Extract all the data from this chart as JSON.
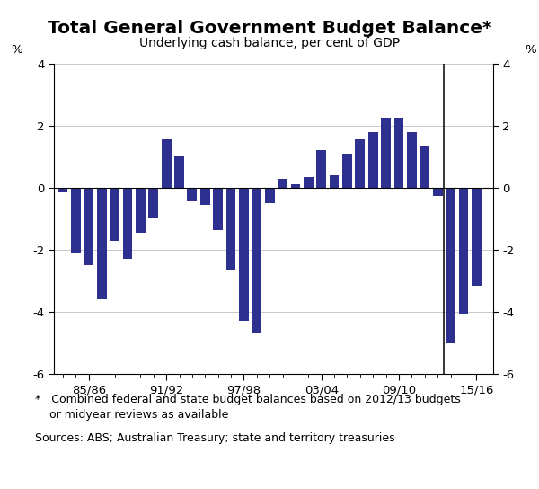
{
  "title": "Total General Government Budget Balance*",
  "subtitle": "Underlying cash balance, per cent of GDP",
  "ylabel_left": "%",
  "ylabel_right": "%",
  "ylim": [
    -6,
    4
  ],
  "yticks": [
    -6,
    -4,
    -2,
    0,
    2,
    4
  ],
  "bar_color": "#2E308F",
  "background_color": "#ffffff",
  "grid_color": "#c8c8c8",
  "vline_year": 2012.5,
  "years": [
    1983,
    1984,
    1985,
    1986,
    1987,
    1988,
    1989,
    1990,
    1991,
    1992,
    1993,
    1994,
    1995,
    1996,
    1997,
    1998,
    1999,
    2000,
    2001,
    2002,
    2003,
    2004,
    2005,
    2006,
    2007,
    2008,
    2009,
    2010,
    2011,
    2012,
    2013,
    2014,
    2015
  ],
  "values": [
    -0.15,
    -2.1,
    -2.5,
    -3.6,
    -1.7,
    -2.3,
    -1.45,
    -1.0,
    1.55,
    1.0,
    -0.45,
    -0.55,
    -1.35,
    -2.65,
    -4.3,
    -4.7,
    -0.5,
    0.3,
    0.1,
    0.35,
    1.2,
    0.4,
    1.1,
    1.55,
    1.8,
    2.25,
    2.25,
    1.8,
    1.35,
    -0.25,
    -5.0,
    -4.05,
    -3.15
  ],
  "xtick_labels": [
    "85/86",
    "91/92",
    "97/98",
    "03/04",
    "09/10",
    "15/16"
  ],
  "xtick_positions": [
    1985,
    1991,
    1997,
    2003,
    2009,
    2015
  ],
  "footnote1": "*   Combined federal and state budget balances based on 2012/13 budgets",
  "footnote2": "    or midyear reviews as available",
  "sources": "Sources: ABS; Australian Treasury; state and territory treasuries",
  "title_fontsize": 14.5,
  "subtitle_fontsize": 10,
  "tick_fontsize": 9.5,
  "annot_fontsize": 9
}
